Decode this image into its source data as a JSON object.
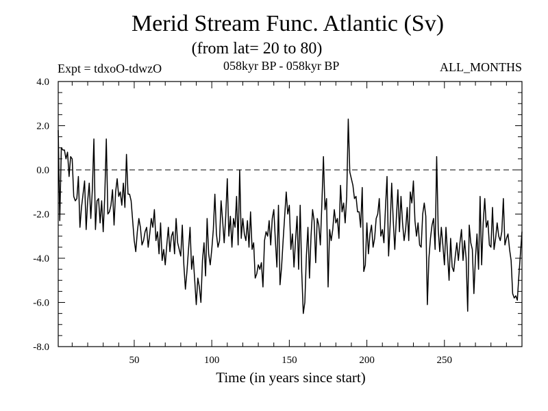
{
  "chart_data": {
    "type": "line",
    "title": "Merid Stream Func. Atlantic (Sv)",
    "subtitle": "(from lat= 20 to 80)",
    "annotations": {
      "left": "Expt = tdxoO-tdwzO",
      "center": "058kyr BP - 058kyr BP",
      "right": "ALL_MONTHS"
    },
    "xlabel": "Time (in years since start)",
    "ylabel": "",
    "xlim": [
      1,
      300
    ],
    "ylim": [
      -8.0,
      4.0
    ],
    "x_ticks": [
      50,
      100,
      150,
      200,
      250
    ],
    "y_ticks": [
      4.0,
      2.0,
      0.0,
      -2.0,
      -4.0,
      -6.0,
      -8.0
    ],
    "y_tick_labels": [
      "4.0",
      "2.0",
      "0.0",
      "-2.0",
      "-4.0",
      "-6.0",
      "-8.0"
    ],
    "reference_line": 0.0,
    "grid": false,
    "x_start": 1,
    "series": [
      {
        "color": "#000000",
        "values": [
          1.8,
          -2.3,
          1.0,
          0.9,
          0.9,
          0.5,
          0.8,
          -0.3,
          0.6,
          0.5,
          -1.2,
          -1.4,
          -1.3,
          -0.3,
          -2.6,
          -1.7,
          -1.1,
          -0.5,
          -2.7,
          -1.4,
          -0.6,
          -2.2,
          -0.9,
          1.4,
          -2.7,
          -1.4,
          -1.3,
          -2.4,
          -1.4,
          -2.8,
          -1.2,
          1.4,
          -2.0,
          -1.9,
          -1.6,
          -0.9,
          -2.5,
          -1.0,
          -0.4,
          -1.2,
          -1.0,
          -1.6,
          -0.6,
          -1.7,
          0.7,
          -1.1,
          -1.1,
          -1.4,
          -2.3,
          -3.2,
          -3.7,
          -2.8,
          -2.2,
          -2.6,
          -3.4,
          -3.2,
          -2.8,
          -2.6,
          -3.5,
          -2.9,
          -2.2,
          -2.6,
          -1.8,
          -3.2,
          -2.8,
          -3.8,
          -2.4,
          -4.1,
          -3.6,
          -4.3,
          -3.4,
          -2.6,
          -3.7,
          -3.0,
          -2.8,
          -3.8,
          -2.2,
          -3.3,
          -3.6,
          -3.9,
          -2.5,
          -4.3,
          -5.4,
          -4.6,
          -3.6,
          -2.6,
          -4.5,
          -3.9,
          -5.0,
          -6.1,
          -4.9,
          -5.3,
          -6.0,
          -4.1,
          -3.3,
          -4.8,
          -2.2,
          -3.8,
          -4.3,
          -3.6,
          -2.7,
          -1.1,
          -2.9,
          -3.5,
          -3.2,
          -1.4,
          -2.3,
          -3.3,
          -2.1,
          -0.4,
          -3.0,
          -2.1,
          -3.5,
          -2.2,
          -2.6,
          -1.2,
          -3.4,
          0.0,
          -3.1,
          -2.2,
          -2.9,
          -3.2,
          -2.3,
          -3.5,
          -1.9,
          -3.6,
          -3.3,
          -4.9,
          -4.7,
          -4.3,
          -4.5,
          -4.2,
          -5.3,
          -3.2,
          -2.8,
          -3.0,
          -2.3,
          -3.4,
          -2.2,
          -1.8,
          -3.2,
          -4.4,
          -1.6,
          -5.2,
          -4.4,
          -3.2,
          -2.1,
          -1.0,
          -2.0,
          -1.6,
          -3.6,
          -2.9,
          -4.4,
          -3.2,
          -2.1,
          -4.5,
          -1.6,
          -4.6,
          -6.5,
          -6.0,
          -3.9,
          -2.6,
          -4.9,
          -3.0,
          -1.8,
          -2.3,
          -4.2,
          -2.2,
          -2.5,
          -3.4,
          -1.5,
          0.6,
          -1.8,
          -1.3,
          -5.3,
          -2.7,
          -3.2,
          -2.7,
          -1.8,
          -2.4,
          -2.2,
          -3.1,
          -0.7,
          -1.9,
          -1.5,
          -2.4,
          -1.2,
          2.3,
          -0.1,
          -0.4,
          -0.7,
          -1.3,
          -1.2,
          -1.9,
          -1.9,
          -2.6,
          -0.8,
          -4.6,
          -4.3,
          -2.4,
          -3.8,
          -2.9,
          -2.5,
          -3.5,
          -3.1,
          -2.2,
          -2.0,
          -1.3,
          -3.0,
          -2.7,
          -3.3,
          -1.7,
          -0.3,
          -3.9,
          -2.5,
          -0.6,
          -2.3,
          -3.6,
          -2.2,
          -0.9,
          -2.8,
          -1.2,
          -2.4,
          -3.2,
          -2.7,
          -1.7,
          -3.2,
          -1.0,
          -1.5,
          -0.5,
          -2.3,
          -3.0,
          -2.4,
          -3.4,
          -3.5,
          -2.0,
          -1.5,
          -2.1,
          -6.1,
          -4.0,
          -3.1,
          -2.5,
          -2.2,
          -3.6,
          0.6,
          -2.7,
          -3.7,
          -2.6,
          -3.4,
          -4.3,
          -2.6,
          -3.8,
          -5.0,
          -3.1,
          -4.4,
          -4.6,
          -3.9,
          -3.3,
          -4.1,
          -3.3,
          -2.7,
          -4.1,
          -3.2,
          -4.0,
          -6.4,
          -2.5,
          -3.3,
          -3.6,
          -5.6,
          -4.0,
          -2.9,
          -4.5,
          -1.2,
          -4.3,
          -2.4,
          -1.3,
          -2.6,
          -2.3,
          -3.4,
          -3.5,
          -1.7,
          -3.6,
          -3.1,
          -2.4,
          -3.0,
          -3.2,
          -2.8,
          -1.3,
          -3.4,
          -3.1,
          -2.9,
          -3.6,
          -4.1,
          -5.6,
          -5.8,
          -5.7,
          -5.9,
          -4.8,
          -3.8,
          -2.8
        ]
      }
    ]
  }
}
